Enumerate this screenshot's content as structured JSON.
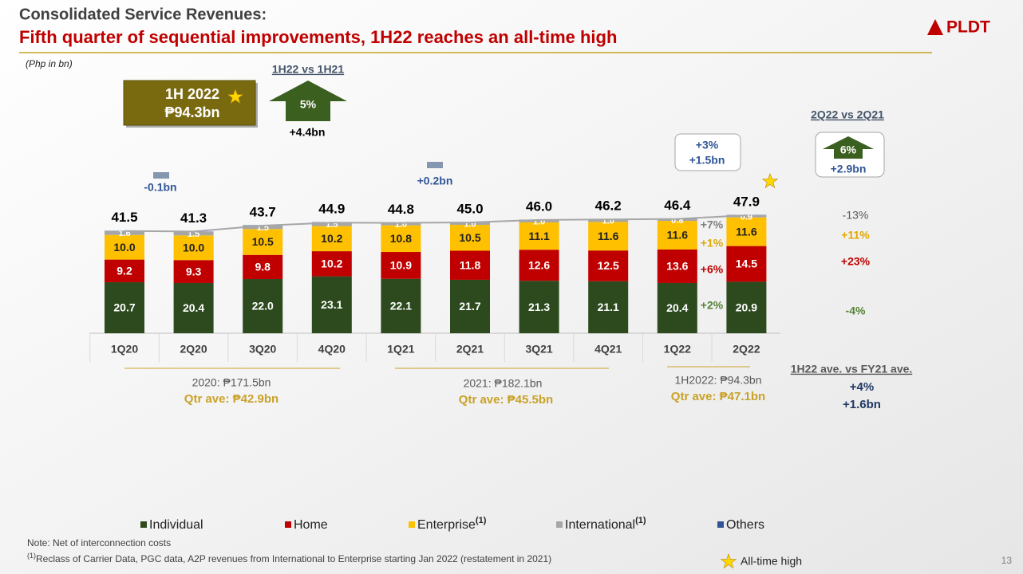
{
  "slide": {
    "title": "Consolidated Service Revenues:",
    "subtitle": "Fifth quarter of sequential improvements, 1H22 reaches an all-time high",
    "logo": "PLDT",
    "unit_note": "(Php in bn)",
    "h1_box": {
      "label": "1H 2022",
      "value": "₱94.3bn"
    },
    "h1_vs": {
      "title": "1H22 vs 1H21",
      "pct": "5%",
      "abs": "+4.4bn"
    },
    "q2_vs": {
      "title": "2Q22 vs 2Q21",
      "pct": "6%",
      "abs": "+2.9bn"
    },
    "callouts": {
      "y2020": "-0.1bn",
      "y2021": "+0.2bn",
      "q_pct": "+3%",
      "q_abs": "+1.5bn"
    },
    "periods": [
      {
        "total": "2020: ₱171.5bn",
        "ave": "Qtr ave:  ₱42.9bn"
      },
      {
        "total": "2021: ₱182.1bn",
        "ave": "Qtr ave:  ₱45.5bn"
      },
      {
        "total": "1H2022: ₱94.3bn",
        "ave": "Qtr ave:  ₱47.1bn"
      }
    ],
    "ave_vs": {
      "title": "1H22 ave. vs FY21 ave.",
      "pct": "+4%",
      "abs": "+1.6bn"
    },
    "qoq_changes": [
      "+7%",
      "+1%",
      "+6%",
      "+2%"
    ],
    "yoy_changes": [
      "-13%",
      "+11%",
      "+23%",
      "-4%"
    ],
    "notes": {
      "line1": "Note:  Net of interconnection costs",
      "mark": "(1)",
      "line2": "Reclass of Carrier Data, PGC data, A2P revenues  from  International  to Enterprise starting Jan 2022 (restatement in 2021)"
    },
    "star_legend": "All-time high",
    "page": "13"
  },
  "chart_data": {
    "type": "stacked_bar",
    "categories": [
      "1Q20",
      "2Q20",
      "3Q20",
      "4Q20",
      "1Q21",
      "2Q21",
      "3Q21",
      "4Q21",
      "1Q22",
      "2Q22"
    ],
    "series": [
      {
        "name": "Individual",
        "color": "#2d4a1e",
        "values": [
          20.7,
          20.4,
          22.0,
          23.1,
          22.1,
          21.7,
          21.3,
          21.1,
          20.4,
          20.9
        ],
        "value_labels": [
          "20.7",
          "20.4",
          "22.0",
          "23.1",
          "22.1",
          "21.7",
          "21.3",
          "21.1",
          "20.4",
          "20.9"
        ]
      },
      {
        "name": "Home",
        "color": "#c00000",
        "values": [
          9.2,
          9.3,
          9.8,
          10.2,
          10.9,
          11.8,
          12.6,
          12.5,
          13.6,
          14.5
        ]
      },
      {
        "name": "Enterprise",
        "note": "(1)",
        "color": "#ffc000",
        "values": [
          10.0,
          10.0,
          10.5,
          10.2,
          10.8,
          10.5,
          11.1,
          11.6,
          11.6,
          11.6
        ],
        "value_labels": [
          "10.0",
          "10.0",
          "10.5",
          "10.2",
          "10.8",
          "10.5",
          "11.1",
          "11.6",
          "11.6",
          "11.6"
        ]
      },
      {
        "name": "International",
        "note": "(1)",
        "color": "#a6a6a6",
        "values": [
          1.6,
          1.5,
          1.5,
          1.5,
          1.0,
          1.0,
          1.0,
          1.0,
          0.8,
          0.9
        ],
        "value_labels": [
          "1.6",
          "1.5",
          "1.5",
          "1.5",
          "1.0",
          "1.0",
          "1.0",
          "1.0",
          "0.8",
          "0.9"
        ]
      },
      {
        "name": "Others",
        "color": "#2f5597",
        "values": [
          0.1,
          0.1,
          0.1,
          0.1,
          0.1,
          0.1,
          0.1,
          0.1,
          0.1,
          0.1
        ]
      }
    ],
    "totals": [
      41.5,
      41.3,
      43.7,
      44.9,
      44.8,
      45.0,
      46.0,
      46.2,
      46.4,
      47.9
    ],
    "total_labels": [
      "41.5",
      "41.3",
      "43.7",
      "44.9",
      "44.8",
      "45.0",
      "46.0",
      "46.2",
      "46.4",
      "47.9"
    ]
  }
}
